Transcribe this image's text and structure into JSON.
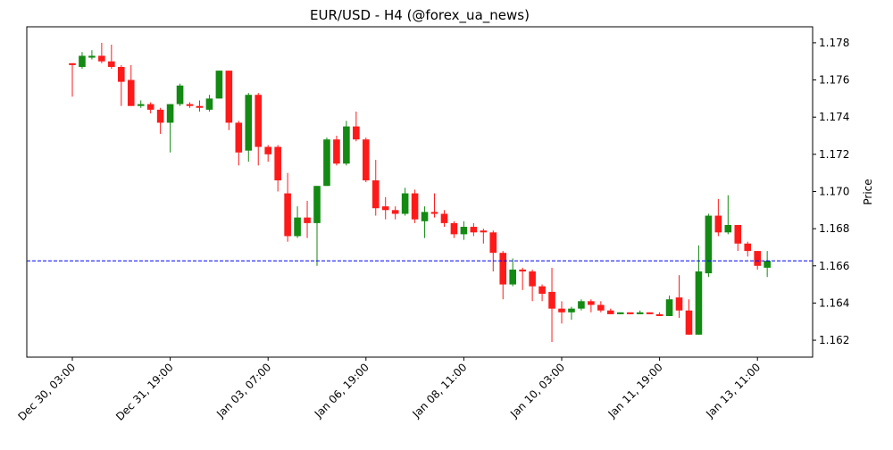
{
  "chart_data": {
    "type": "candlestick",
    "title": "EUR/USD - H4 (@forex_ua_news)",
    "y_label": "Price",
    "y_axis_side": "right",
    "categories": [
      "Dec 30, 03:00",
      null,
      null,
      null,
      null,
      null,
      null,
      null,
      null,
      null,
      "Dec 31, 19:00",
      null,
      null,
      null,
      null,
      null,
      null,
      null,
      null,
      null,
      "Jan 03, 07:00",
      null,
      null,
      null,
      null,
      null,
      null,
      null,
      null,
      null,
      "Jan 06, 19:00",
      null,
      null,
      null,
      null,
      null,
      null,
      null,
      null,
      null,
      "Jan 08, 11:00",
      null,
      null,
      null,
      null,
      null,
      null,
      null,
      null,
      null,
      "Jan 10, 03:00",
      null,
      null,
      null,
      null,
      null,
      null,
      null,
      null,
      null,
      "Jan 11, 19:00",
      null,
      null,
      null,
      null,
      null,
      null,
      null,
      null,
      null,
      "Jan 13, 11:00",
      null
    ],
    "open": [
      1.1769,
      1.1767,
      1.1772,
      1.1773,
      1.177,
      1.1767,
      1.176,
      1.1746,
      1.1747,
      1.1744,
      1.1737,
      1.1747,
      1.1747,
      1.1746,
      1.1744,
      1.175,
      1.1765,
      1.1737,
      1.1722,
      1.1752,
      1.1724,
      1.1724,
      1.1699,
      1.1676,
      1.1686,
      1.1683,
      1.1703,
      1.1728,
      1.1715,
      1.1735,
      1.1728,
      1.1706,
      1.1692,
      1.169,
      1.1688,
      1.1699,
      1.1684,
      1.1689,
      1.1688,
      1.1683,
      1.1677,
      1.1681,
      1.1679,
      1.1678,
      1.1667,
      1.165,
      1.1658,
      1.1657,
      1.1649,
      1.1646,
      1.1637,
      1.1635,
      1.1637,
      1.1641,
      1.1639,
      1.1636,
      1.1634,
      1.1635,
      1.1634,
      1.1635,
      1.1634,
      1.1633,
      1.1643,
      1.1636,
      1.1623,
      1.1656,
      1.1687,
      1.1678,
      1.1682,
      1.1672,
      1.1668,
      1.1659
    ],
    "high": [
      1.1769,
      1.1775,
      1.1776,
      1.178,
      1.1779,
      1.1768,
      1.1768,
      1.1749,
      1.1748,
      1.1745,
      1.1747,
      1.1758,
      1.1748,
      1.1749,
      1.1752,
      1.1765,
      1.1765,
      1.1738,
      1.1753,
      1.1753,
      1.1725,
      1.1725,
      1.171,
      1.1692,
      1.1695,
      1.1703,
      1.1729,
      1.173,
      1.1738,
      1.1743,
      1.1729,
      1.1717,
      1.1697,
      1.1692,
      1.1702,
      1.1701,
      1.1692,
      1.1699,
      1.169,
      1.1684,
      1.1684,
      1.1683,
      1.168,
      1.1679,
      1.1668,
      1.1664,
      1.1659,
      1.1658,
      1.165,
      1.1659,
      1.1641,
      1.1638,
      1.1642,
      1.1642,
      1.1641,
      1.1637,
      1.1635,
      1.1635,
      1.1636,
      1.1635,
      1.1635,
      1.1644,
      1.1655,
      1.1642,
      1.1671,
      1.1688,
      1.1696,
      1.1698,
      1.1682,
      1.1673,
      1.1668,
      1.1668
    ],
    "low": [
      1.1751,
      1.1766,
      1.1771,
      1.1769,
      1.1766,
      1.1746,
      1.1746,
      1.1745,
      1.1742,
      1.1731,
      1.1721,
      1.1746,
      1.1745,
      1.1743,
      1.1743,
      1.175,
      1.1733,
      1.1714,
      1.1716,
      1.1714,
      1.1716,
      1.17,
      1.1673,
      1.1675,
      1.1675,
      1.166,
      1.1703,
      1.1714,
      1.1714,
      1.1727,
      1.1705,
      1.1687,
      1.1685,
      1.1685,
      1.1687,
      1.1683,
      1.1675,
      1.1686,
      1.1681,
      1.1675,
      1.1674,
      1.1676,
      1.1672,
      1.1657,
      1.1642,
      1.1649,
      1.1647,
      1.1641,
      1.1641,
      1.1619,
      1.1629,
      1.1631,
      1.1636,
      1.1635,
      1.1635,
      1.1634,
      1.1634,
      1.1634,
      1.1634,
      1.1634,
      1.1633,
      1.1633,
      1.1632,
      1.1623,
      1.1623,
      1.1654,
      1.1676,
      1.1677,
      1.1668,
      1.1665,
      1.1658,
      1.1654
    ],
    "close": [
      1.1768,
      1.1773,
      1.1773,
      1.177,
      1.1767,
      1.1759,
      1.1746,
      1.1747,
      1.1744,
      1.1737,
      1.1747,
      1.1757,
      1.1746,
      1.1745,
      1.175,
      1.1765,
      1.1737,
      1.1721,
      1.1752,
      1.1724,
      1.172,
      1.1706,
      1.1676,
      1.1686,
      1.1683,
      1.1703,
      1.1728,
      1.1715,
      1.1735,
      1.1728,
      1.1706,
      1.1691,
      1.169,
      1.1688,
      1.1699,
      1.1685,
      1.1689,
      1.1688,
      1.1683,
      1.1677,
      1.1681,
      1.1678,
      1.1678,
      1.1667,
      1.165,
      1.1658,
      1.1657,
      1.1649,
      1.1645,
      1.1637,
      1.1635,
      1.1637,
      1.1641,
      1.1639,
      1.1636,
      1.1634,
      1.1635,
      1.1634,
      1.1635,
      1.1634,
      1.1633,
      1.1642,
      1.1636,
      1.1623,
      1.1657,
      1.1687,
      1.1678,
      1.1682,
      1.1672,
      1.1668,
      1.166,
      1.16627
    ],
    "up_color": "#138a13",
    "down_color": "#ff1a1a",
    "hline": {
      "value": 1.16627,
      "color": "#0000ff",
      "style": "dashed"
    },
    "ylim": [
      1.16109,
      1.17886
    ],
    "yticks": [
      1.162,
      1.164,
      1.166,
      1.168,
      {
        "value": 1.17,
        "label": "1.170"
      },
      1.172,
      1.174,
      1.176,
      1.178
    ]
  }
}
